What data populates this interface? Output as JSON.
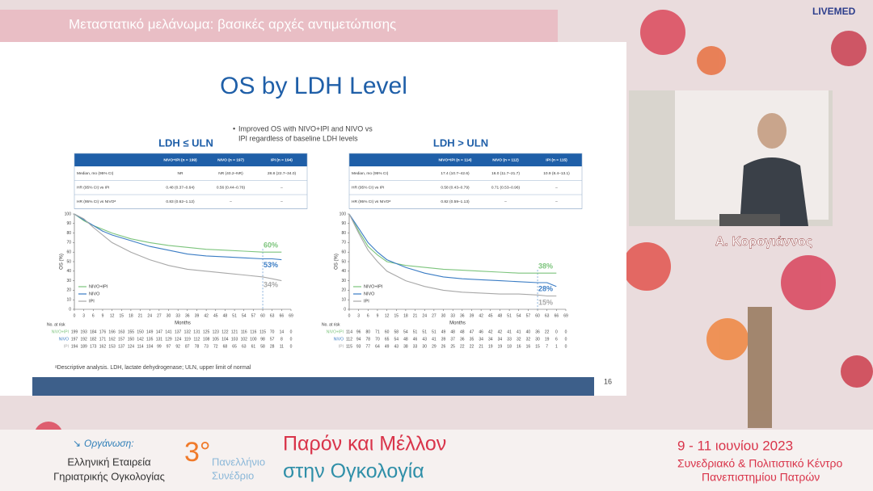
{
  "broadcast": {
    "topic": "Μεταστατικό μελάνωμα: βασικές αρχές αντιμετώπισης",
    "brand": "LIVEMED",
    "speaker": "Α. Κορογιάννος"
  },
  "slide": {
    "title": "OS by LDH Level",
    "bullet": [
      "Improved OS with NIVO+IPI and NIVO vs",
      "IPI regardless of baseline LDH levels"
    ],
    "footnote": "ᵃDescriptive analysis. LDH, lactate dehydrogenase; ULN, upper limit of normal",
    "page_number": 16,
    "panels": [
      {
        "heading": "LDH ≤ ULN",
        "table": {
          "header": [
            "NIVO+IPI (n = 199)",
            "NIVO (n = 197)",
            "IPI (n = 194)"
          ],
          "rows": [
            [
              "Median, mo (95% CI)",
              "NR",
              "NR (40.2–NR)",
              "28.8 (22.7–34.0)"
            ],
            [
              "HR (95% CI) vs IPI",
              "0.48 (0.37–0.64)",
              "0.56 (0.44–0.76)",
              "–"
            ],
            [
              "HR (95% CI) vs NIVOᵃ",
              "0.83 (0.62–1.12)",
              "–",
              "–"
            ]
          ]
        }
      },
      {
        "heading": "LDH > ULN",
        "table": {
          "header": [
            "NIVO+IPI (n = 114)",
            "NIVO (n = 112)",
            "IPI (n = 115)"
          ],
          "rows": [
            [
              "Median, mo (95% CI)",
              "17.4 (10.7–42.6)",
              "16.0 (11.7–21.7)",
              "10.9 (8.4–13.1)"
            ],
            [
              "HR (95% CI) vs IPI",
              "0.58 (0.43–0.79)",
              "0.71 (0.53–0.96)",
              "–"
            ],
            [
              "HR (95% CI) vs NIVOᵃ",
              "0.82 (0.59–1.13)",
              "–",
              "–"
            ]
          ]
        }
      }
    ]
  },
  "chart_data": [
    {
      "type": "line",
      "x_label": "Months",
      "y_label": "OS (%)",
      "at_risk_title": "No. at risk",
      "x": [
        0,
        3,
        6,
        9,
        12,
        18,
        24,
        30,
        36,
        42,
        48,
        54,
        60,
        63,
        66
      ],
      "xlim": [
        0,
        69
      ],
      "xticks": [
        0,
        3,
        6,
        9,
        12,
        15,
        18,
        21,
        24,
        27,
        30,
        33,
        36,
        39,
        42,
        45,
        48,
        51,
        54,
        57,
        60,
        63,
        66,
        69
      ],
      "ylim": [
        0,
        100
      ],
      "yticks": [
        0,
        10,
        20,
        30,
        40,
        50,
        60,
        70,
        80,
        90,
        100
      ],
      "series": [
        {
          "name": "NIVO+IPI",
          "color": "#7cc47c",
          "values": [
            100,
            93,
            88,
            84,
            80,
            74,
            70,
            67,
            65,
            63,
            62,
            61,
            60,
            60,
            60
          ],
          "value_labels": [
            null,
            null,
            null,
            null,
            null,
            null,
            null,
            null,
            null,
            null,
            null,
            null,
            "60%",
            null,
            null
          ],
          "at_risk": [
            199,
            193,
            184,
            176,
            166,
            163,
            155,
            150,
            149,
            147,
            141,
            137,
            132,
            131,
            125,
            123,
            122,
            121,
            116,
            116,
            115,
            70,
            14,
            0
          ]
        },
        {
          "name": "NIVO",
          "color": "#3a7cc4",
          "values": [
            100,
            94,
            88,
            82,
            78,
            72,
            66,
            62,
            58,
            56,
            55,
            54,
            53,
            53,
            52
          ],
          "value_labels": [
            null,
            null,
            null,
            null,
            null,
            null,
            null,
            null,
            null,
            null,
            null,
            null,
            "53%",
            null,
            null
          ],
          "at_risk": [
            197,
            192,
            182,
            171,
            162,
            157,
            150,
            142,
            135,
            131,
            129,
            124,
            119,
            112,
            108,
            105,
            104,
            103,
            102,
            100,
            98,
            57,
            8,
            0
          ]
        },
        {
          "name": "IPI",
          "color": "#a8a8a8",
          "values": [
            100,
            95,
            86,
            78,
            70,
            60,
            52,
            46,
            42,
            40,
            38,
            36,
            34,
            32,
            30
          ],
          "value_labels": [
            null,
            null,
            null,
            null,
            null,
            null,
            null,
            null,
            null,
            null,
            null,
            null,
            "34%",
            null,
            null
          ],
          "at_risk": [
            194,
            189,
            173,
            162,
            153,
            137,
            124,
            114,
            104,
            99,
            97,
            92,
            87,
            78,
            73,
            72,
            68,
            65,
            63,
            61,
            58,
            28,
            11,
            0
          ]
        }
      ]
    },
    {
      "type": "line",
      "x_label": "Months",
      "y_label": "OS (%)",
      "at_risk_title": "No. at risk",
      "x": [
        0,
        3,
        6,
        9,
        12,
        18,
        24,
        30,
        36,
        42,
        48,
        54,
        60,
        63,
        66
      ],
      "xlim": [
        0,
        69
      ],
      "xticks": [
        0,
        3,
        6,
        9,
        12,
        15,
        18,
        21,
        24,
        27,
        30,
        33,
        36,
        39,
        42,
        45,
        48,
        51,
        54,
        57,
        60,
        63,
        66,
        69
      ],
      "ylim": [
        0,
        100
      ],
      "yticks": [
        0,
        10,
        20,
        30,
        40,
        50,
        60,
        70,
        80,
        90,
        100
      ],
      "series": [
        {
          "name": "NIVO+IPI",
          "color": "#7cc47c",
          "values": [
            100,
            82,
            66,
            57,
            50,
            46,
            44,
            42,
            41,
            40,
            39,
            38,
            38,
            38,
            38
          ],
          "value_labels": [
            null,
            null,
            null,
            null,
            null,
            null,
            null,
            null,
            null,
            null,
            null,
            null,
            "38%",
            null,
            null
          ],
          "at_risk": [
            114,
            96,
            80,
            71,
            60,
            58,
            54,
            51,
            51,
            51,
            49,
            48,
            48,
            47,
            46,
            42,
            42,
            41,
            41,
            40,
            36,
            22,
            0,
            0
          ]
        },
        {
          "name": "NIVO",
          "color": "#3a7cc4",
          "values": [
            100,
            85,
            70,
            60,
            52,
            44,
            38,
            34,
            32,
            31,
            30,
            29,
            28,
            28,
            24
          ],
          "value_labels": [
            null,
            null,
            null,
            null,
            null,
            null,
            null,
            null,
            null,
            null,
            null,
            null,
            "28%",
            null,
            null
          ],
          "at_risk": [
            112,
            94,
            78,
            70,
            65,
            54,
            48,
            46,
            43,
            41,
            39,
            37,
            36,
            35,
            34,
            34,
            34,
            33,
            32,
            32,
            30,
            19,
            6,
            0
          ]
        },
        {
          "name": "IPI",
          "color": "#a8a8a8",
          "values": [
            100,
            80,
            62,
            50,
            40,
            30,
            24,
            20,
            18,
            17,
            16,
            16,
            15,
            14,
            14
          ],
          "value_labels": [
            null,
            null,
            null,
            null,
            null,
            null,
            null,
            null,
            null,
            null,
            null,
            null,
            "15%",
            null,
            null
          ],
          "at_risk": [
            115,
            93,
            77,
            64,
            49,
            43,
            38,
            33,
            30,
            29,
            26,
            25,
            22,
            22,
            21,
            19,
            19,
            18,
            16,
            16,
            15,
            7,
            1,
            0
          ]
        }
      ]
    }
  ],
  "footer": {
    "organizer_label": "Οργάνωση:",
    "organizer": [
      "Ελληνική Εταιρεία",
      "Γηριατρικής Ογκολογίας"
    ],
    "edition": "3°",
    "congress": [
      "Πανελλήνιο",
      "Συνέδριο"
    ],
    "motto": [
      "Παρόν και Μέλλον",
      "στην Ογκολογία"
    ],
    "dates": "9 - 11 ιουνίου 2023",
    "venue": [
      "Συνεδριακό & Πολιτιστικό Κέντρο",
      "Πανεπιστημίου Πατρών"
    ]
  }
}
